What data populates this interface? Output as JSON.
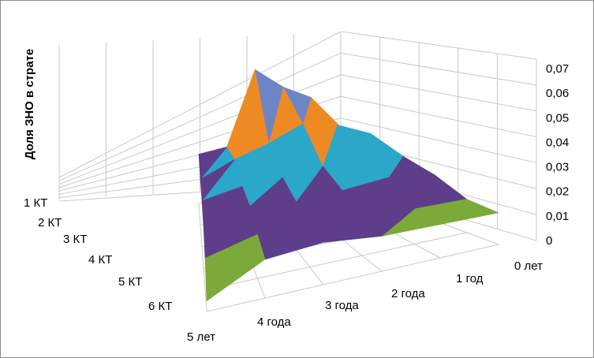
{
  "chart_data": {
    "type": "surface3d",
    "title": "",
    "zlabel": "Доля ЗНО в страте",
    "ylabel": "",
    "xlabel": "",
    "kt_labels": [
      "1 КТ",
      "2 КТ",
      "3 КТ",
      "4 КТ",
      "5 КТ",
      "6 КТ"
    ],
    "year_labels": [
      "0 лет",
      "1 год",
      "2 года",
      "3 года",
      "4 года",
      "5 лет"
    ],
    "z_ticks": [
      "0",
      "0,01",
      "0,02",
      "0,03",
      "0,04",
      "0,05",
      "0,06",
      "0,07"
    ],
    "zlim": [
      0,
      0.07
    ],
    "z_major": 0.01,
    "values": [
      [
        0.034,
        0.052,
        0.06,
        0.072,
        0.03,
        0.028
      ],
      [
        0.036,
        0.044,
        0.048,
        0.04,
        0.034,
        0.026
      ],
      [
        0.03,
        0.034,
        0.033,
        0.031,
        0.03,
        0.026
      ],
      [
        0.026,
        0.03,
        0.028,
        0.027,
        0.03,
        0.024
      ],
      [
        0.019,
        0.02,
        0.022,
        0.022,
        0.025,
        0.018
      ],
      [
        0.018,
        0.019,
        0.02,
        0.024,
        0.022,
        0.006
      ]
    ],
    "band_colors": [
      "#9b2d2d",
      "#7ba93a",
      "#5e3d8a",
      "#2aa7c9",
      "#ee8a24",
      "#6d85c6"
    ],
    "grid": true
  }
}
